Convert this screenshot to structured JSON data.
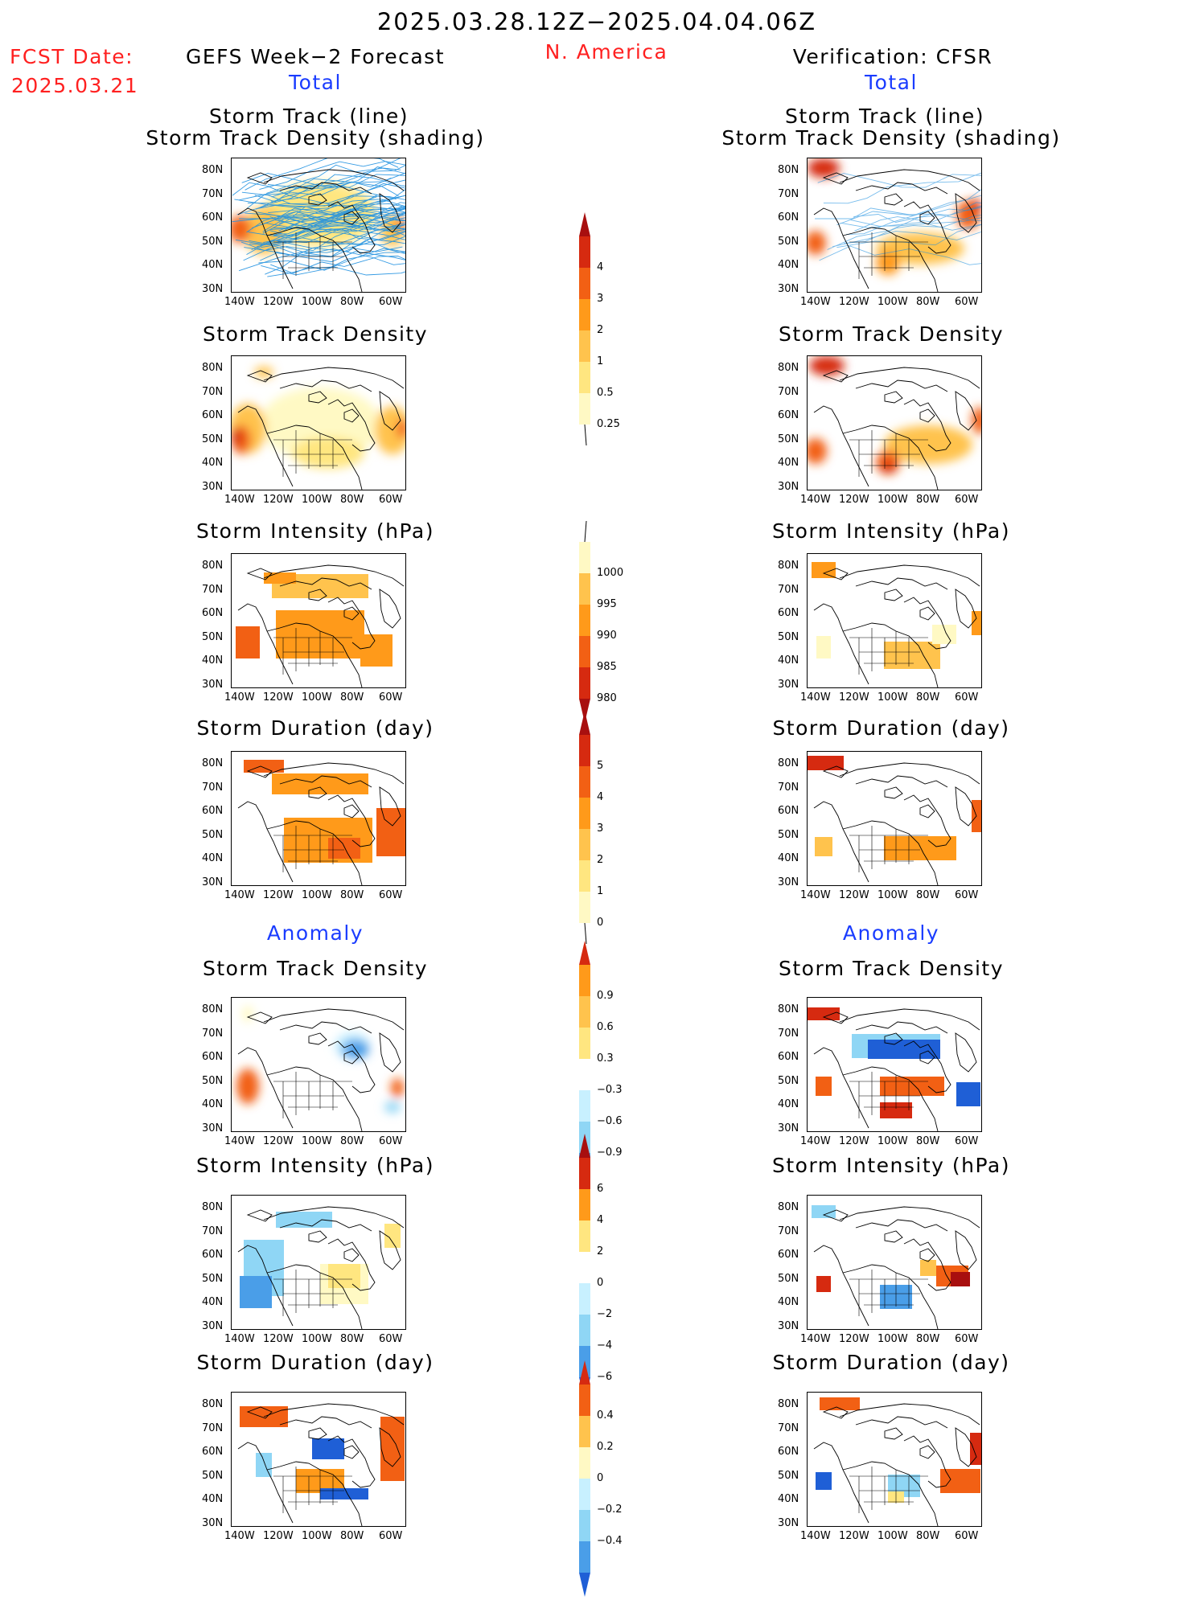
{
  "header": {
    "date_range": "2025.03.28.12Z−2025.04.04.06Z",
    "fcst_label": "FCST Date:",
    "fcst_date": "2025.03.21",
    "left_title": "GEFS Week−2 Forecast",
    "region": "N. America",
    "right_title": "Verification: CFSR"
  },
  "sections": {
    "total": "Total",
    "anomaly": "Anomaly"
  },
  "panel_titles": {
    "track_line": "Storm Track (line)",
    "track_shading": "Storm Track Density (shading)",
    "density": "Storm Track Density",
    "intensity": "Storm Intensity (hPa)",
    "duration": "Storm Duration (day)"
  },
  "axes": {
    "lat_ticks": [
      "80N",
      "70N",
      "60N",
      "50N",
      "40N",
      "30N"
    ],
    "lon_ticks": [
      "140W",
      "120W",
      "100W",
      "80W",
      "60W"
    ]
  },
  "colorbars": {
    "density_total": [
      "4",
      "3",
      "2",
      "1",
      "0.5",
      "0.25"
    ],
    "intensity_total": [
      "1000",
      "995",
      "990",
      "985",
      "980"
    ],
    "duration_total": [
      "5",
      "4",
      "3",
      "2",
      "1",
      "0"
    ],
    "density_anom": [
      "0.9",
      "0.6",
      "0.3",
      "−0.3",
      "−0.6",
      "−0.9"
    ],
    "intensity_anom": [
      "6",
      "4",
      "2",
      "0",
      "−2",
      "−4",
      "−6"
    ],
    "duration_anom": [
      "0.4",
      "0.2",
      "0",
      "−0.2",
      "−0.4"
    ]
  },
  "colors": {
    "warm": [
      "#fff9c4",
      "#ffe680",
      "#ffc34d",
      "#ff9a1a",
      "#f26014",
      "#d62a10",
      "#a80f0f"
    ],
    "cool": [
      "#c8f0ff",
      "#8fd6f5",
      "#4a9ee8",
      "#1f5fd6"
    ],
    "track_line": "#1e90e0"
  }
}
